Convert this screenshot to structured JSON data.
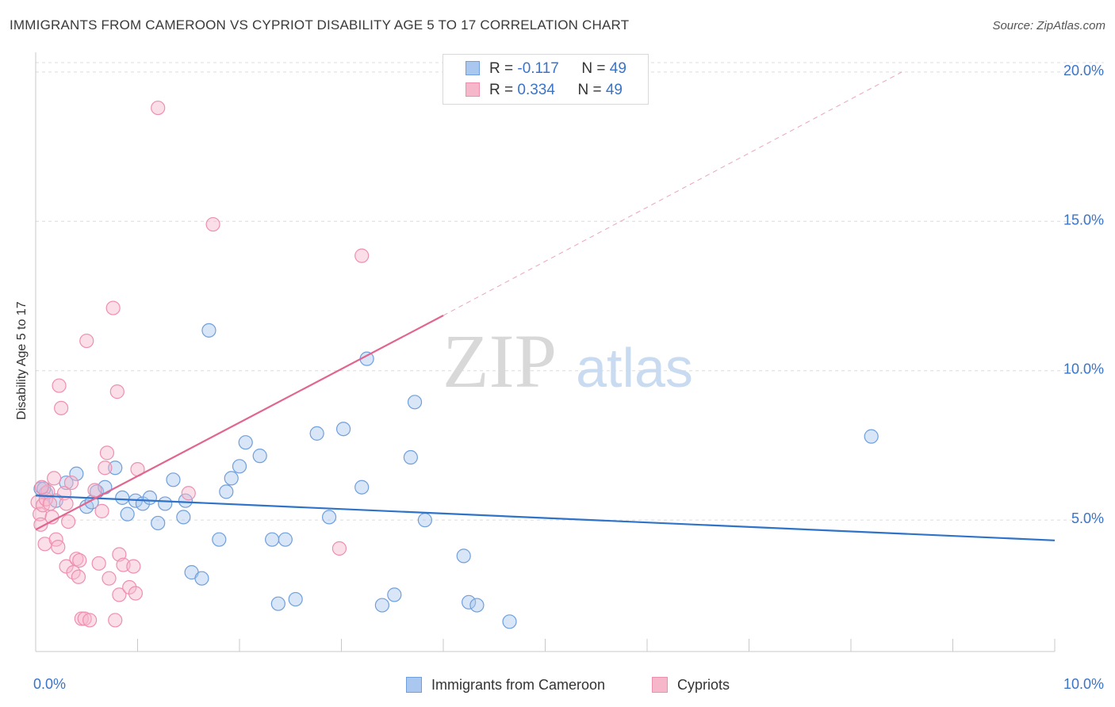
{
  "title": "IMMIGRANTS FROM CAMEROON VS CYPRIOT DISABILITY AGE 5 TO 17 CORRELATION CHART",
  "source": "Source: ZipAtlas.com",
  "watermark": {
    "zip": "ZIP",
    "atlas": "atlas"
  },
  "colors": {
    "blue_fill": "#a9c7ef",
    "blue_stroke": "#6f9fdc",
    "blue_line": "#2f73c9",
    "pink_fill": "#f6b7cb",
    "pink_stroke": "#ee8fae",
    "pink_line": "#e0668f",
    "value_text": "#3a74c9",
    "grid": "#dcdcdc"
  },
  "legend_top": {
    "rows": [
      {
        "r_label": "R = ",
        "r_value": "-0.117",
        "n_label": "N = ",
        "n_value": "49",
        "series": "blue"
      },
      {
        "r_label": "R = ",
        "r_value": "0.334",
        "n_label": "N = ",
        "n_value": "49",
        "series": "pink"
      }
    ]
  },
  "legend_bottom": {
    "items": [
      {
        "label": "Immigrants from Cameroon",
        "series": "blue"
      },
      {
        "label": "Cypriots",
        "series": "pink"
      }
    ]
  },
  "chart_data": {
    "type": "scatter",
    "xlabel": "",
    "ylabel": "Disability Age 5 to 17",
    "xlim": [
      0,
      10
    ],
    "ylim": [
      0.6,
      20.5
    ],
    "x_tick_labels": [
      "0.0%",
      "10.0%"
    ],
    "y_ticks": [
      5,
      10,
      15,
      20
    ],
    "y_tick_labels": [
      "5.0%",
      "10.0%",
      "15.0%",
      "20.0%"
    ],
    "grid": true,
    "series": [
      {
        "name": "Immigrants from Cameroon",
        "color": "blue",
        "points": [
          [
            0.05,
            6.05
          ],
          [
            0.1,
            5.9
          ],
          [
            0.2,
            5.65
          ],
          [
            0.3,
            6.25
          ],
          [
            0.4,
            6.55
          ],
          [
            0.5,
            5.45
          ],
          [
            0.55,
            5.6
          ],
          [
            0.6,
            5.95
          ],
          [
            0.68,
            6.1
          ],
          [
            0.78,
            6.75
          ],
          [
            0.85,
            5.75
          ],
          [
            0.9,
            5.2
          ],
          [
            0.98,
            5.65
          ],
          [
            1.05,
            5.55
          ],
          [
            1.12,
            5.75
          ],
          [
            1.2,
            4.9
          ],
          [
            1.27,
            5.55
          ],
          [
            1.35,
            6.35
          ],
          [
            1.45,
            5.1
          ],
          [
            1.47,
            5.65
          ],
          [
            1.53,
            3.25
          ],
          [
            1.63,
            3.05
          ],
          [
            1.7,
            11.35
          ],
          [
            1.8,
            4.35
          ],
          [
            1.87,
            5.95
          ],
          [
            1.92,
            6.4
          ],
          [
            2.0,
            6.8
          ],
          [
            2.06,
            7.6
          ],
          [
            2.2,
            7.15
          ],
          [
            2.32,
            4.35
          ],
          [
            2.38,
            2.2
          ],
          [
            2.45,
            4.35
          ],
          [
            2.55,
            2.35
          ],
          [
            2.76,
            7.9
          ],
          [
            2.88,
            5.1
          ],
          [
            3.02,
            8.05
          ],
          [
            3.2,
            6.1
          ],
          [
            3.25,
            10.4
          ],
          [
            3.4,
            2.15
          ],
          [
            3.52,
            2.5
          ],
          [
            3.68,
            7.1
          ],
          [
            3.72,
            8.95
          ],
          [
            3.82,
            5.0
          ],
          [
            4.2,
            3.8
          ],
          [
            4.25,
            2.25
          ],
          [
            4.33,
            2.15
          ],
          [
            4.65,
            1.6
          ],
          [
            8.2,
            7.8
          ],
          [
            0.08,
            6.05
          ]
        ]
      },
      {
        "name": "Cypriots",
        "color": "pink",
        "points": [
          [
            0.02,
            5.6
          ],
          [
            0.04,
            5.2
          ],
          [
            0.05,
            4.85
          ],
          [
            0.07,
            5.5
          ],
          [
            0.09,
            4.2
          ],
          [
            0.1,
            5.7
          ],
          [
            0.12,
            5.95
          ],
          [
            0.14,
            5.55
          ],
          [
            0.16,
            5.1
          ],
          [
            0.18,
            6.4
          ],
          [
            0.2,
            4.35
          ],
          [
            0.22,
            4.1
          ],
          [
            0.23,
            9.5
          ],
          [
            0.25,
            8.75
          ],
          [
            0.28,
            5.9
          ],
          [
            0.3,
            5.55
          ],
          [
            0.3,
            3.45
          ],
          [
            0.32,
            4.95
          ],
          [
            0.35,
            6.25
          ],
          [
            0.37,
            3.25
          ],
          [
            0.4,
            3.7
          ],
          [
            0.42,
            3.1
          ],
          [
            0.43,
            3.65
          ],
          [
            0.45,
            1.7
          ],
          [
            0.48,
            1.7
          ],
          [
            0.5,
            11.0
          ],
          [
            0.53,
            1.65
          ],
          [
            0.58,
            6.0
          ],
          [
            0.62,
            3.55
          ],
          [
            0.65,
            5.3
          ],
          [
            0.68,
            6.75
          ],
          [
            0.7,
            7.25
          ],
          [
            0.72,
            3.05
          ],
          [
            0.76,
            12.1
          ],
          [
            0.78,
            1.65
          ],
          [
            0.8,
            9.3
          ],
          [
            0.82,
            2.5
          ],
          [
            0.82,
            3.85
          ],
          [
            0.86,
            3.5
          ],
          [
            0.92,
            2.75
          ],
          [
            0.96,
            3.45
          ],
          [
            0.98,
            2.55
          ],
          [
            1.0,
            6.7
          ],
          [
            1.2,
            18.8
          ],
          [
            1.5,
            5.9
          ],
          [
            1.74,
            14.9
          ],
          [
            2.98,
            4.05
          ],
          [
            3.2,
            13.85
          ],
          [
            0.06,
            6.1
          ]
        ]
      }
    ],
    "trendlines": [
      {
        "series": "Immigrants from Cameroon",
        "x": [
          0,
          10
        ],
        "y": [
          5.82,
          4.32
        ],
        "style": "solid"
      },
      {
        "series": "Cypriots",
        "x": [
          0,
          4.0
        ],
        "y": [
          4.68,
          11.85
        ],
        "style": "solid"
      },
      {
        "series": "Cypriots",
        "x": [
          4.0,
          8.5
        ],
        "y": [
          11.85,
          20.0
        ],
        "style": "dashed"
      }
    ]
  }
}
